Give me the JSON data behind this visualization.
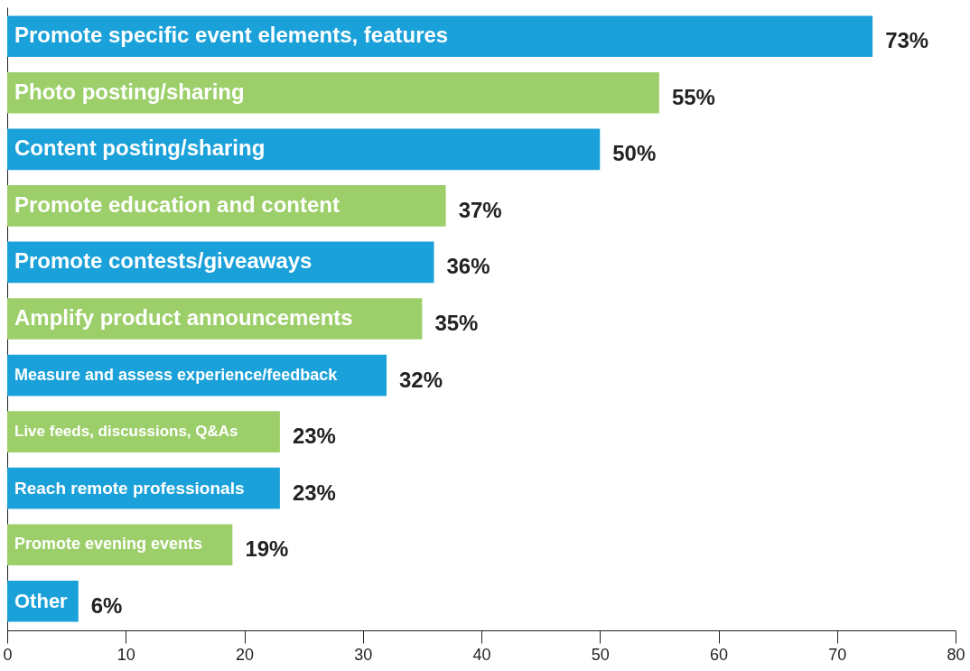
{
  "chart_data": {
    "type": "bar",
    "orientation": "horizontal",
    "categories": [
      "Promote specific event elements, features",
      "Photo posting/sharing",
      "Content posting/sharing",
      "Promote education and content",
      "Promote contests/giveaways",
      "Amplify product announcements",
      "Measure and assess experience/feedback",
      "Live feeds, discussions, Q&As",
      "Reach remote professionals",
      "Promote evening events",
      "Other"
    ],
    "values": [
      73,
      55,
      50,
      37,
      36,
      35,
      32,
      23,
      23,
      19,
      6
    ],
    "colors": [
      "#1ba1d9",
      "#9ccf6a",
      "#1ba1d9",
      "#9ccf6a",
      "#1ba1d9",
      "#9ccf6a",
      "#1ba1d9",
      "#9ccf6a",
      "#1ba1d9",
      "#9ccf6a",
      "#1ba1d9"
    ],
    "value_labels": [
      "73%",
      "55%",
      "50%",
      "37%",
      "36%",
      "35%",
      "32%",
      "23%",
      "23%",
      "19%",
      "6%"
    ],
    "xlim": [
      0,
      80
    ],
    "xticks": [
      0,
      10,
      20,
      30,
      40,
      50,
      60,
      70,
      80
    ],
    "grid": false
  }
}
